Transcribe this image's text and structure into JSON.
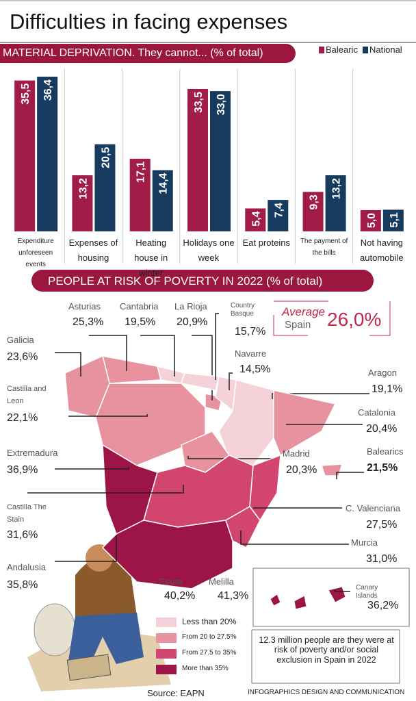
{
  "title": "Difficulties in facing expenses",
  "chart_data": {
    "type": "bar",
    "title": "MATERIAL DEPRIVATION. They cannot... (% of total)",
    "categories": [
      "Expenditure unforeseen events",
      "Expenses of housing",
      "Heating house in winter",
      "Holidays one week",
      "Eat proteins",
      "The payment of the bills",
      "Not having automobile"
    ],
    "series": [
      {
        "name": "Balearic",
        "color": "#a11d47",
        "values": [
          35.5,
          13.2,
          17.1,
          33.5,
          5.4,
          9.3,
          5.0
        ],
        "value_labels": [
          "35,5",
          "13,2",
          "17,1",
          "33,5",
          "5,4",
          "9,3",
          "5,0"
        ]
      },
      {
        "name": "National",
        "color": "#173b5f",
        "values": [
          36.4,
          20.5,
          14.4,
          33.0,
          7.4,
          13.2,
          5.1
        ],
        "value_labels": [
          "36,4",
          "20,5",
          "14,4",
          "33,0",
          "7,4",
          "13,2",
          "5,1"
        ]
      }
    ]
  },
  "map": {
    "title": "PEOPLE AT RISK OF POVERTY IN 2022 (% of total)",
    "average": {
      "label": "Average",
      "sublabel": "Spain",
      "value": 26.0,
      "value_label": "26,0%"
    },
    "regions": [
      {
        "name": "Asturias",
        "value": 25.3,
        "value_label": "25,3%",
        "color": "#e8919f"
      },
      {
        "name": "Cantabria",
        "value": 19.5,
        "value_label": "19,5%",
        "color": "#f5d2da"
      },
      {
        "name": "La Rioja",
        "value": 20.9,
        "value_label": "20,9%",
        "color": "#e8919f"
      },
      {
        "name": "Country Basque",
        "value": 15.7,
        "value_label": "15,7%",
        "color": "#f5d2da"
      },
      {
        "name": "Navarre",
        "value": 14.5,
        "value_label": "14,5%",
        "color": "#f5d2da"
      },
      {
        "name": "Galicia",
        "value": 23.6,
        "value_label": "23,6%",
        "color": "#e8919f"
      },
      {
        "name": "Castilla and Leon",
        "value": 22.1,
        "value_label": "22,1%",
        "color": "#e8919f"
      },
      {
        "name": "Aragon",
        "value": 19.1,
        "value_label": "19,1%",
        "color": "#f5d2da"
      },
      {
        "name": "Catalonia",
        "value": 20.4,
        "value_label": "20,4%",
        "color": "#e8919f"
      },
      {
        "name": "Extremadura",
        "value": 36.9,
        "value_label": "36,9%",
        "color": "#9c1546"
      },
      {
        "name": "Madrid",
        "value": 20.3,
        "value_label": "20,3%",
        "color": "#e8919f"
      },
      {
        "name": "Balearics",
        "value": 21.5,
        "value_label": "21,5%",
        "color": "#e8919f"
      },
      {
        "name": "Castilla The Stain",
        "value": 31.6,
        "value_label": "31,6%",
        "color": "#d2456e"
      },
      {
        "name": "C. Valenciana",
        "value": 27.5,
        "value_label": "27,5%",
        "color": "#d2456e"
      },
      {
        "name": "Andalusia",
        "value": 35.8,
        "value_label": "35,8%",
        "color": "#9c1546"
      },
      {
        "name": "Murcia",
        "value": 31.0,
        "value_label": "31,0%",
        "color": "#d2456e"
      },
      {
        "name": "Ceuta",
        "value": 40.2,
        "value_label": "40,2%",
        "color": "#9c1546"
      },
      {
        "name": "Melilla",
        "value": 41.3,
        "value_label": "41,3%",
        "color": "#9c1546"
      },
      {
        "name": "Canary Islands",
        "value": 36.2,
        "value_label": "36,2%",
        "color": "#9c1546"
      }
    ],
    "legend": [
      {
        "label": "Less than 20%",
        "color": "#f5d2da"
      },
      {
        "label": "From 20 to 27.5%",
        "color": "#e8919f"
      },
      {
        "label": "From 27.5 to 35%",
        "color": "#d2456e"
      },
      {
        "label": "More than 35%",
        "color": "#9c1546"
      }
    ],
    "note": "12.3 million people are they were at risk of poverty and/or social exclusion in Spain in 2022",
    "source": "Source: EAPN",
    "credit": "INFOGRAPHICS DESIGN AND COMMUNICATION"
  }
}
